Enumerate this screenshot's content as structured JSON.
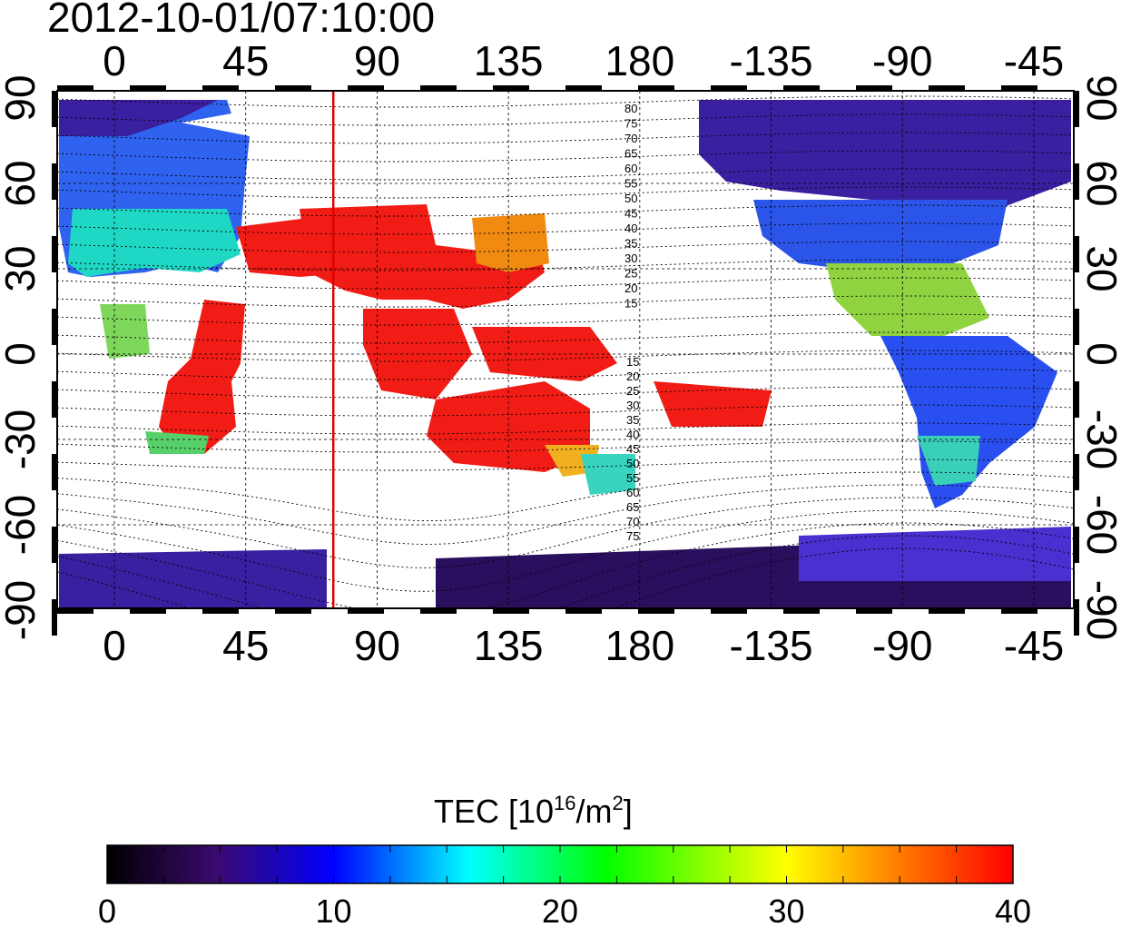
{
  "title": "2012-10-01/07:10:00",
  "lon_ticks": [
    "0",
    "45",
    "90",
    "135",
    "180",
    "-135",
    "-90",
    "-45"
  ],
  "lat_ticks": [
    "90",
    "60",
    "30",
    "0",
    "-30",
    "-60",
    "-90"
  ],
  "contour_labels_north": [
    "80",
    "75",
    "70",
    "65",
    "60",
    "55",
    "50",
    "45",
    "40",
    "35",
    "30",
    "25",
    "20",
    "15"
  ],
  "contour_labels_south": [
    "15",
    "20",
    "25",
    "30",
    "35",
    "40",
    "45",
    "50",
    "55",
    "60",
    "65",
    "70",
    "75"
  ],
  "colorbar": {
    "label_prefix": "TEC  [10",
    "label_exp": "16",
    "label_mid": "/m",
    "label_exp2": "2",
    "label_suffix": "]",
    "ticks": [
      "0",
      "10",
      "20",
      "30",
      "40"
    ],
    "stops": [
      "#000000",
      "#3a0a6e",
      "#0000ff",
      "#00ffff",
      "#00ff00",
      "#ffff00",
      "#ff8000",
      "#ff0000"
    ]
  },
  "terminator_longitude": 75,
  "colors": {
    "terminator": "#e00000",
    "frame": "#000000",
    "ocean": "#ffffff"
  }
}
